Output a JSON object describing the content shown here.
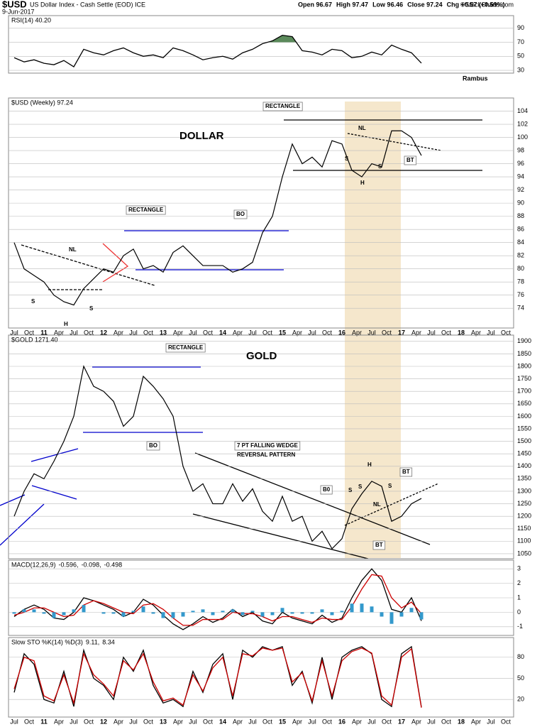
{
  "header": {
    "symbol": "$USD",
    "name": "US Dollar Index - Cash Settle (EOD) ICE",
    "date": "9-Jun-2017",
    "quote": [
      "Open 96.67",
      "High 97.47",
      "Low 96.46",
      "Close 97.24",
      "Chg +0.57 (+0.59%)"
    ],
    "credit": "©StockCharts.com",
    "author": "Rambus"
  },
  "x_tick_labels": [
    "Jul",
    "Oct",
    "11",
    "Apr",
    "Jul",
    "Oct",
    "12",
    "Apr",
    "Jul",
    "Oct",
    "13",
    "Apr",
    "Jul",
    "Oct",
    "14",
    "Apr",
    "Jul",
    "Oct",
    "15",
    "Apr",
    "Jul",
    "Oct",
    "16",
    "Apr",
    "Jul",
    "Oct",
    "17",
    "Apr",
    "Jul",
    "Oct",
    "18",
    "Apr",
    "Jul",
    "Oct"
  ],
  "chart_data": [
    {
      "type": "line",
      "label": "RSI(14) 40.20",
      "fill_above": 70,
      "fill_color": "#5b8a5b",
      "x": [
        "2010-07",
        "2010-09",
        "2010-11",
        "2011-01",
        "2011-03",
        "2011-05",
        "2011-07",
        "2011-09",
        "2011-11",
        "2012-01",
        "2012-03",
        "2012-05",
        "2012-07",
        "2012-09",
        "2012-11",
        "2013-01",
        "2013-03",
        "2013-05",
        "2013-07",
        "2013-09",
        "2013-11",
        "2014-01",
        "2014-03",
        "2014-05",
        "2014-07",
        "2014-09",
        "2014-11",
        "2015-01",
        "2015-03",
        "2015-05",
        "2015-07",
        "2015-09",
        "2015-11",
        "2016-01",
        "2016-03",
        "2016-05",
        "2016-07",
        "2016-09",
        "2016-11",
        "2017-01",
        "2017-03",
        "2017-05"
      ],
      "series": [
        {
          "color": "#000000",
          "values": [
            48,
            42,
            45,
            40,
            38,
            44,
            35,
            60,
            55,
            52,
            58,
            62,
            55,
            50,
            52,
            48,
            62,
            58,
            52,
            45,
            48,
            50,
            46,
            55,
            60,
            68,
            72,
            80,
            78,
            58,
            56,
            52,
            60,
            58,
            48,
            50,
            56,
            52,
            66,
            60,
            55,
            40.2
          ]
        }
      ],
      "ylim": [
        26,
        108
      ],
      "yticks": [
        30,
        50,
        70,
        90
      ]
    },
    {
      "type": "line",
      "label": "$USD (Weekly) 97.24",
      "x": [
        "2010-07",
        "2010-09",
        "2010-11",
        "2011-01",
        "2011-03",
        "2011-05",
        "2011-07",
        "2011-09",
        "2011-11",
        "2012-01",
        "2012-03",
        "2012-05",
        "2012-07",
        "2012-09",
        "2012-11",
        "2013-01",
        "2013-03",
        "2013-05",
        "2013-07",
        "2013-09",
        "2013-11",
        "2014-01",
        "2014-03",
        "2014-05",
        "2014-07",
        "2014-09",
        "2014-11",
        "2015-01",
        "2015-03",
        "2015-05",
        "2015-07",
        "2015-09",
        "2015-11",
        "2016-01",
        "2016-03",
        "2016-05",
        "2016-07",
        "2016-09",
        "2016-11",
        "2017-01",
        "2017-03",
        "2017-05"
      ],
      "series": [
        {
          "color": "#000000",
          "values": [
            84,
            80,
            79,
            78,
            76,
            75,
            74.5,
            77,
            78.5,
            80,
            79.5,
            82,
            83,
            80,
            80.5,
            79.5,
            82.5,
            83.5,
            82,
            80.5,
            80.5,
            80.5,
            79.5,
            80,
            81,
            85.5,
            88,
            94,
            99,
            96,
            97,
            95.5,
            99.5,
            99,
            95,
            94,
            96,
            95.5,
            101,
            101,
            100,
            97.24
          ]
        }
      ],
      "ylim": [
        71,
        106
      ],
      "yticks": [
        74,
        76,
        78,
        80,
        82,
        84,
        86,
        88,
        90,
        92,
        94,
        96,
        98,
        100,
        102,
        104
      ],
      "annotations": [
        {
          "text": "RECTANGLE",
          "color": "#000000"
        },
        {
          "text": "DOLLAR",
          "color": "#000000"
        },
        {
          "text": "RECTANGLE",
          "color": "#0000cc"
        },
        {
          "text": "BO",
          "color": "#0000cc"
        },
        {
          "text": "NL",
          "color": "#000000"
        },
        {
          "text": "S",
          "color": "#000000"
        },
        {
          "text": "H",
          "color": "#000000"
        },
        {
          "text": "S",
          "color": "#000000"
        },
        {
          "text": "NL",
          "color": "#000000"
        },
        {
          "text": "S",
          "color": "#000000"
        },
        {
          "text": "H",
          "color": "#000000"
        },
        {
          "text": "S",
          "color": "#000000"
        },
        {
          "text": "BT",
          "color": "#0000cc"
        }
      ]
    },
    {
      "type": "line",
      "label": "$GOLD 1271.40",
      "x": [
        "2010-07",
        "2010-09",
        "2010-11",
        "2011-01",
        "2011-03",
        "2011-05",
        "2011-07",
        "2011-09",
        "2011-11",
        "2012-01",
        "2012-03",
        "2012-05",
        "2012-07",
        "2012-09",
        "2012-11",
        "2013-01",
        "2013-03",
        "2013-05",
        "2013-07",
        "2013-09",
        "2013-11",
        "2014-01",
        "2014-03",
        "2014-05",
        "2014-07",
        "2014-09",
        "2014-11",
        "2015-01",
        "2015-03",
        "2015-05",
        "2015-07",
        "2015-09",
        "2015-11",
        "2016-01",
        "2016-03",
        "2016-05",
        "2016-07",
        "2016-09",
        "2016-11",
        "2017-01",
        "2017-03",
        "2017-05"
      ],
      "series": [
        {
          "color": "#000000",
          "values": [
            1200,
            1300,
            1370,
            1350,
            1420,
            1500,
            1600,
            1800,
            1720,
            1700,
            1660,
            1560,
            1600,
            1760,
            1720,
            1670,
            1600,
            1400,
            1300,
            1330,
            1250,
            1250,
            1330,
            1260,
            1310,
            1220,
            1180,
            1280,
            1180,
            1200,
            1100,
            1140,
            1070,
            1110,
            1230,
            1290,
            1340,
            1320,
            1180,
            1200,
            1250,
            1271.4
          ]
        }
      ],
      "ylim": [
        1030,
        1925
      ],
      "yticks": [
        1050,
        1100,
        1150,
        1200,
        1250,
        1300,
        1350,
        1400,
        1450,
        1500,
        1550,
        1600,
        1650,
        1700,
        1750,
        1800,
        1850,
        1900
      ],
      "annotations": [
        {
          "text": "GOLD",
          "color": "#000000"
        },
        {
          "text": "RECTANGLE",
          "color": "#0000cc"
        },
        {
          "text": "BO",
          "color": "#0000cc"
        },
        {
          "text": "7 PT FALLING WEDGE",
          "color": "#000000"
        },
        {
          "text": "REVERSAL PATTERN",
          "color": "#000000"
        },
        {
          "text": "B0",
          "color": "#0000cc"
        },
        {
          "text": "S",
          "color": "#000000"
        },
        {
          "text": "H",
          "color": "#000000"
        },
        {
          "text": "S",
          "color": "#000000"
        },
        {
          "text": "S",
          "color": "#000000"
        },
        {
          "text": "NL",
          "color": "#000000"
        },
        {
          "text": "BT",
          "color": "#0000cc"
        },
        {
          "text": "BT",
          "color": "#0000cc"
        }
      ]
    },
    {
      "type": "macd",
      "label": [
        {
          "text": "MACD(12,26,9)",
          "color": "#000000"
        },
        {
          "text": "-0.596,",
          "color": "#000000"
        },
        {
          "text": "-0.098,",
          "color": "#cc0000"
        },
        {
          "text": "-0.498",
          "color": "#3399cc"
        }
      ],
      "x": [
        "2010-07",
        "2010-09",
        "2010-11",
        "2011-01",
        "2011-03",
        "2011-05",
        "2011-07",
        "2011-09",
        "2011-11",
        "2012-01",
        "2012-03",
        "2012-05",
        "2012-07",
        "2012-09",
        "2012-11",
        "2013-01",
        "2013-03",
        "2013-05",
        "2013-07",
        "2013-09",
        "2013-11",
        "2014-01",
        "2014-03",
        "2014-05",
        "2014-07",
        "2014-09",
        "2014-11",
        "2015-01",
        "2015-03",
        "2015-05",
        "2015-07",
        "2015-09",
        "2015-11",
        "2016-01",
        "2016-03",
        "2016-05",
        "2016-07",
        "2016-09",
        "2016-11",
        "2017-01",
        "2017-03",
        "2017-05"
      ],
      "series": [
        {
          "color": "#000000",
          "values": [
            -0.3,
            0.2,
            0.5,
            0.2,
            -0.4,
            -0.5,
            0,
            1.0,
            0.8,
            0.5,
            0.2,
            -0.3,
            0,
            0.9,
            0.5,
            -0.2,
            -0.8,
            -1.2,
            -0.8,
            -0.3,
            -0.7,
            -0.4,
            0.2,
            -0.3,
            0,
            -0.6,
            -0.8,
            0,
            -0.4,
            -0.6,
            -0.8,
            -0.2,
            -0.7,
            -0.4,
            1.0,
            2.2,
            3.0,
            2.2,
            0.2,
            0,
            1.0,
            -0.596
          ]
        },
        {
          "color": "#cc0000",
          "values": [
            -0.2,
            0,
            0.3,
            0.3,
            0,
            -0.3,
            -0.2,
            0.5,
            0.8,
            0.6,
            0.3,
            0,
            -0.1,
            0.5,
            0.6,
            0.2,
            -0.4,
            -0.9,
            -0.9,
            -0.5,
            -0.5,
            -0.5,
            0,
            -0.1,
            -0.1,
            -0.3,
            -0.6,
            -0.3,
            -0.3,
            -0.5,
            -0.7,
            -0.4,
            -0.5,
            -0.5,
            0.4,
            1.6,
            2.6,
            2.5,
            1.0,
            0.3,
            0.7,
            -0.098
          ]
        },
        {
          "color": "#3399cc",
          "style": "histogram",
          "values": [
            -0.1,
            0.2,
            0.2,
            -0.1,
            -0.4,
            -0.2,
            0.2,
            0.5,
            0,
            -0.1,
            -0.1,
            -0.3,
            0.1,
            0.4,
            -0.1,
            -0.4,
            -0.4,
            -0.3,
            0.1,
            0.2,
            -0.2,
            0.1,
            0.2,
            -0.2,
            0.1,
            -0.3,
            -0.2,
            0.3,
            -0.1,
            -0.1,
            -0.1,
            0.2,
            -0.2,
            0.1,
            0.6,
            0.6,
            0.4,
            -0.3,
            -0.8,
            -0.3,
            0.3,
            -0.498
          ]
        }
      ],
      "ylim": [
        -1.6,
        3.6
      ],
      "yticks": [
        -1,
        0,
        1,
        2,
        3
      ]
    },
    {
      "type": "line",
      "label": [
        {
          "text": "Slow STO %K(14) %D(3)",
          "color": "#000000"
        },
        {
          "text": "9.11,",
          "color": "#000000"
        },
        {
          "text": "8.34",
          "color": "#cc0000"
        }
      ],
      "x": [
        "2010-07",
        "2010-09",
        "2010-11",
        "2011-01",
        "2011-03",
        "2011-05",
        "2011-07",
        "2011-09",
        "2011-11",
        "2012-01",
        "2012-03",
        "2012-05",
        "2012-07",
        "2012-09",
        "2012-11",
        "2013-01",
        "2013-03",
        "2013-05",
        "2013-07",
        "2013-09",
        "2013-11",
        "2014-01",
        "2014-03",
        "2014-05",
        "2014-07",
        "2014-09",
        "2014-11",
        "2015-01",
        "2015-03",
        "2015-05",
        "2015-07",
        "2015-09",
        "2015-11",
        "2016-01",
        "2016-03",
        "2016-05",
        "2016-07",
        "2016-09",
        "2016-11",
        "2017-01",
        "2017-03",
        "2017-05"
      ],
      "series": [
        {
          "color": "#000000",
          "values": [
            30,
            85,
            70,
            20,
            15,
            60,
            10,
            90,
            50,
            40,
            20,
            80,
            60,
            90,
            40,
            15,
            20,
            10,
            60,
            30,
            70,
            85,
            20,
            90,
            80,
            95,
            90,
            95,
            40,
            60,
            15,
            80,
            20,
            80,
            90,
            95,
            85,
            20,
            10,
            85,
            95,
            9.11
          ]
        },
        {
          "color": "#cc0000",
          "values": [
            35,
            80,
            75,
            25,
            18,
            55,
            15,
            85,
            55,
            42,
            25,
            75,
            62,
            85,
            45,
            18,
            22,
            12,
            55,
            32,
            65,
            80,
            25,
            85,
            82,
            93,
            90,
            93,
            45,
            58,
            18,
            75,
            25,
            75,
            88,
            93,
            86,
            25,
            12,
            80,
            92,
            8.34
          ]
        }
      ],
      "ylim": [
        -5,
        108
      ],
      "yticks": [
        20,
        50,
        80
      ]
    }
  ]
}
